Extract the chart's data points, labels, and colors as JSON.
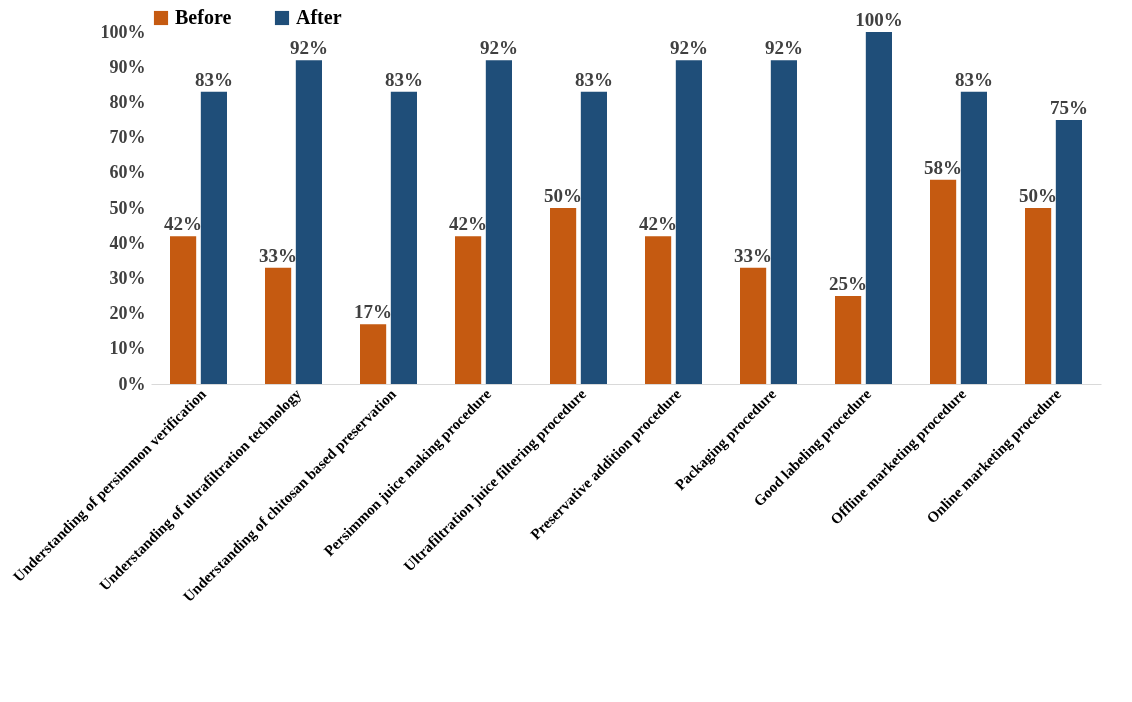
{
  "chart_data": {
    "type": "bar",
    "categories": [
      "Understanding of persimmon verification",
      "Understanding of ultrafiltration technology",
      "Understanding of chitosan based preservation",
      "Persimmon juice making procedure",
      "Ultrafiltration juice filtering procedure",
      "Preservative addition procedure",
      "Packaging procedure",
      "Good labeling procedure",
      "Offline marketing procedure",
      "Online marketing procedure"
    ],
    "series": [
      {
        "name": "Before",
        "color": "#c55a11",
        "values": [
          42,
          33,
          17,
          42,
          50,
          42,
          33,
          25,
          58,
          50
        ],
        "value_labels": [
          "42%",
          "33%",
          "17%",
          "42%",
          "50%",
          "42%",
          "33%",
          "25%",
          "58%",
          "50%"
        ]
      },
      {
        "name": "After",
        "color": "#1f4e79",
        "values": [
          83,
          92,
          83,
          92,
          83,
          92,
          92,
          100,
          83,
          75
        ],
        "value_labels": [
          "83%",
          "92%",
          "83%",
          "92%",
          "83%",
          "92%",
          "92%",
          "100%",
          "83%",
          "75%"
        ]
      }
    ],
    "ylim": [
      0,
      100
    ],
    "yticks": [
      {
        "value": 0,
        "label": "0%"
      },
      {
        "value": 10,
        "label": "10%"
      },
      {
        "value": 20,
        "label": "20%"
      },
      {
        "value": 30,
        "label": "30%"
      },
      {
        "value": 40,
        "label": "40%"
      },
      {
        "value": 50,
        "label": "50%"
      },
      {
        "value": 60,
        "label": "60%"
      },
      {
        "value": 70,
        "label": "70%"
      },
      {
        "value": 80,
        "label": "80%"
      },
      {
        "value": 90,
        "label": "90%"
      },
      {
        "value": 100,
        "label": "100%"
      }
    ],
    "grid": false,
    "legend": "top"
  }
}
